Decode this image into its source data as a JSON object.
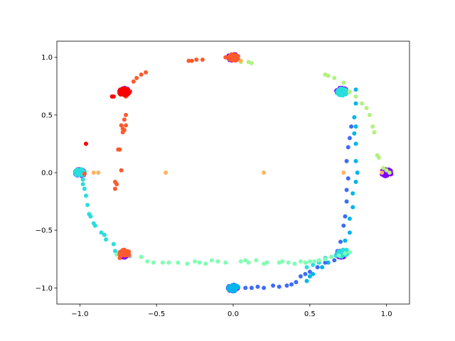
{
  "chart_data": {
    "type": "scatter",
    "title": "",
    "xlabel": "",
    "ylabel": "",
    "xlim": [
      -1.15,
      1.15
    ],
    "ylim": [
      -1.14,
      1.14
    ],
    "grid": false,
    "x_ticks": [
      -1.0,
      -0.5,
      0.0,
      0.5,
      1.0
    ],
    "x_tick_labels": [
      "−1.0",
      "−0.5",
      "0.0",
      "0.5",
      "1.0"
    ],
    "y_ticks": [
      -1.0,
      -0.5,
      0.0,
      0.5,
      1.0
    ],
    "y_tick_labels": [
      "−1.0",
      "−0.5",
      "0.0",
      "0.5",
      "1.0"
    ],
    "colormap": "rainbow",
    "series": [
      {
        "color": "#8000ff",
        "clusters": [
          {
            "x": 0.0,
            "y": 1.0
          },
          {
            "x": 0.707,
            "y": 0.707
          },
          {
            "x": 1.0,
            "y": 0.0
          },
          {
            "x": 0.707,
            "y": -0.707
          },
          {
            "x": 0.0,
            "y": -1.0
          },
          {
            "x": -0.707,
            "y": -0.707
          },
          {
            "x": -1.0,
            "y": 0.0
          },
          {
            "x": -0.707,
            "y": 0.707
          }
        ]
      },
      {
        "color": "#00b5eb",
        "points": [
          [
            0.8,
            0.72
          ],
          [
            0.8,
            0.6
          ],
          [
            0.79,
            0.48
          ],
          [
            0.8,
            0.4
          ],
          [
            0.79,
            0.34
          ],
          [
            0.8,
            0.25
          ],
          [
            0.8,
            0.1
          ],
          [
            0.81,
            0.0
          ],
          [
            0.8,
            -0.08
          ],
          [
            0.78,
            -0.18
          ],
          [
            0.78,
            -0.3
          ],
          [
            0.76,
            -0.4
          ],
          [
            0.76,
            -0.52
          ],
          [
            0.73,
            -0.59
          ],
          [
            0.72,
            -0.7
          ],
          [
            0.7,
            -0.72
          ],
          [
            0.62,
            -0.78
          ],
          [
            0.58,
            -0.82
          ],
          [
            0.52,
            -0.88
          ],
          [
            0.5,
            -0.9
          ],
          [
            0.48,
            -0.94
          ]
        ],
        "clusters": [
          {
            "x": 0.71,
            "y": 0.7
          },
          {
            "x": 0.0,
            "y": -1.0
          }
        ]
      },
      {
        "color": "#3e6cf8",
        "points": [
          [
            0.77,
            0.4
          ],
          [
            0.76,
            0.3
          ],
          [
            0.75,
            0.22
          ],
          [
            0.74,
            0.1
          ],
          [
            0.75,
            -0.05
          ],
          [
            0.74,
            -0.15
          ],
          [
            0.74,
            -0.25
          ],
          [
            0.73,
            -0.38
          ],
          [
            0.72,
            -0.46
          ],
          [
            0.7,
            -0.6
          ],
          [
            0.68,
            -0.68
          ],
          [
            0.66,
            -0.76
          ],
          [
            0.6,
            -0.78
          ],
          [
            0.55,
            -0.82
          ],
          [
            0.5,
            -0.86
          ],
          [
            0.47,
            -0.88
          ],
          [
            0.44,
            -0.9
          ],
          [
            0.41,
            -0.95
          ],
          [
            0.38,
            -0.97
          ],
          [
            0.35,
            -0.98
          ],
          [
            0.3,
            -0.99
          ],
          [
            0.26,
            -0.98
          ],
          [
            0.2,
            -1.0
          ],
          [
            0.16,
            -0.99
          ],
          [
            0.12,
            -1.0
          ],
          [
            0.08,
            -1.0
          ]
        ]
      },
      {
        "color": "#2adddd",
        "points": [
          [
            -0.98,
            -0.06
          ],
          [
            -0.98,
            -0.1
          ],
          [
            -0.97,
            -0.14
          ],
          [
            -0.96,
            -0.2
          ],
          [
            -0.95,
            -0.28
          ],
          [
            -0.94,
            -0.36
          ],
          [
            -0.93,
            -0.38
          ],
          [
            -0.91,
            -0.44
          ],
          [
            -0.9,
            -0.46
          ],
          [
            -0.86,
            -0.52
          ],
          [
            -0.84,
            -0.54
          ],
          [
            -0.83,
            -0.58
          ],
          [
            -0.78,
            -0.62
          ],
          [
            -0.77,
            -0.68
          ],
          [
            -0.75,
            -0.7
          ],
          [
            0.48,
            -0.82
          ],
          [
            0.52,
            -0.8
          ],
          [
            0.56,
            -0.78
          ],
          [
            0.6,
            -0.74
          ],
          [
            0.64,
            -0.73
          ],
          [
            0.67,
            -0.72
          ],
          [
            0.72,
            -0.68
          ],
          [
            0.74,
            -0.67
          ]
        ],
        "clusters": [
          {
            "x": 0.71,
            "y": 0.7
          },
          {
            "x": 0.71,
            "y": -0.7
          },
          {
            "x": -1.0,
            "y": 0.0
          }
        ]
      },
      {
        "color": "#80ffb4",
        "points": [
          [
            -0.76,
            -0.71
          ],
          [
            -0.68,
            -0.72
          ],
          [
            -0.6,
            -0.73
          ],
          [
            -0.56,
            -0.77
          ],
          [
            -0.52,
            -0.78
          ],
          [
            -0.46,
            -0.78
          ],
          [
            -0.42,
            -0.78
          ],
          [
            -0.36,
            -0.78
          ],
          [
            -0.3,
            -0.79
          ],
          [
            -0.25,
            -0.77
          ],
          [
            -0.22,
            -0.78
          ],
          [
            -0.18,
            -0.79
          ],
          [
            -0.14,
            -0.76
          ],
          [
            -0.1,
            -0.77
          ],
          [
            -0.05,
            -0.78
          ],
          [
            0.05,
            -0.77
          ],
          [
            0.08,
            -0.76
          ],
          [
            0.1,
            -0.78
          ],
          [
            0.15,
            -0.76
          ],
          [
            0.2,
            -0.79
          ],
          [
            0.22,
            -0.78
          ],
          [
            0.3,
            -0.78
          ],
          [
            0.32,
            -0.77
          ],
          [
            0.36,
            -0.78
          ],
          [
            0.4,
            -0.79
          ],
          [
            0.44,
            -0.77
          ],
          [
            0.47,
            -0.78
          ],
          [
            0.5,
            -0.77
          ],
          [
            0.53,
            -0.77
          ],
          [
            0.56,
            -0.76
          ],
          [
            0.6,
            -0.75
          ],
          [
            0.64,
            -0.73
          ],
          [
            0.69,
            -0.72
          ],
          [
            0.73,
            -0.7
          ],
          [
            0.76,
            -0.69
          ]
        ]
      },
      {
        "color": "#b4f17f",
        "points": [
          [
            0.05,
            0.96
          ],
          [
            0.1,
            0.96
          ],
          [
            0.12,
            0.95
          ],
          [
            0.6,
            0.85
          ],
          [
            0.62,
            0.84
          ],
          [
            0.66,
            0.82
          ],
          [
            0.72,
            0.78
          ],
          [
            0.76,
            0.7
          ],
          [
            0.8,
            0.66
          ],
          [
            0.84,
            0.6
          ],
          [
            0.87,
            0.56
          ],
          [
            0.89,
            0.5
          ],
          [
            0.91,
            0.4
          ],
          [
            0.92,
            0.35
          ],
          [
            0.94,
            0.15
          ],
          [
            0.95,
            0.13
          ],
          [
            0.98,
            0.04
          ],
          [
            1.0,
            0.02
          ],
          [
            1.02,
            0.0
          ]
        ]
      },
      {
        "color": "#ffb360",
        "points": [
          [
            -0.91,
            0.0
          ],
          [
            -0.88,
            0.0
          ],
          [
            -0.44,
            0.0
          ],
          [
            0.2,
            0.0
          ],
          [
            0.72,
            0.0
          ],
          [
            -0.68,
            0.7
          ],
          [
            0.97,
            0.0
          ],
          [
            0.05,
            0.97
          ]
        ]
      },
      {
        "color": "#ff5a2d",
        "points": [
          [
            -0.29,
            0.97
          ],
          [
            -0.27,
            0.97
          ],
          [
            -0.24,
            0.98
          ],
          [
            -0.2,
            0.98
          ],
          [
            -0.57,
            0.87
          ],
          [
            -0.6,
            0.85
          ],
          [
            -0.63,
            0.82
          ],
          [
            -0.65,
            0.79
          ],
          [
            -0.7,
            0.66
          ],
          [
            -0.7,
            0.5
          ],
          [
            -0.71,
            0.46
          ],
          [
            -0.73,
            0.41
          ],
          [
            -0.7,
            0.41
          ],
          [
            -0.72,
            0.38
          ],
          [
            -0.71,
            0.37
          ],
          [
            -0.72,
            0.35
          ],
          [
            -0.75,
            0.2
          ],
          [
            -0.74,
            0.2
          ],
          [
            -0.73,
            0.02
          ],
          [
            -0.77,
            -0.08
          ],
          [
            -0.77,
            -0.14
          ],
          [
            -0.76,
            -0.1
          ],
          [
            -0.97,
            -0.01
          ],
          [
            -0.05,
            1.0
          ],
          [
            0.03,
            1.0
          ],
          [
            -0.72,
            -0.7
          ],
          [
            -0.74,
            -0.74
          ]
        ],
        "clusters": [
          {
            "x": -0.71,
            "y": 0.7
          },
          {
            "x": -0.71,
            "y": -0.7
          },
          {
            "x": 0.0,
            "y": 1.0
          }
        ]
      },
      {
        "color": "#ff0000",
        "points": [
          [
            -0.79,
            0.66
          ],
          [
            -0.78,
            0.66
          ],
          [
            -0.96,
            0.25
          ],
          [
            -0.69,
            0.7
          ],
          [
            -0.71,
            0.72
          ]
        ],
        "clusters": [
          {
            "x": -0.71,
            "y": 0.7
          }
        ]
      }
    ]
  }
}
